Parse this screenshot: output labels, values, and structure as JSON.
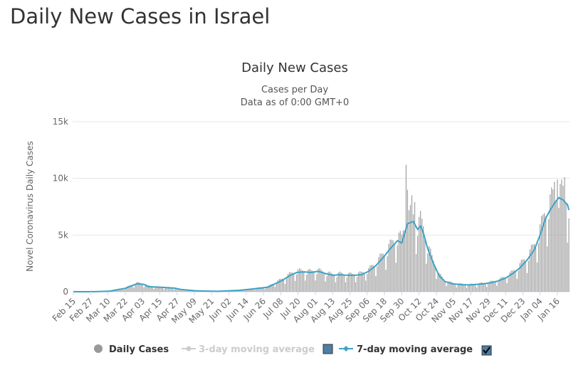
{
  "page": {
    "heading": "Daily New Cases in Israel"
  },
  "chart_data": {
    "type": "bar",
    "title": "Daily New Cases",
    "subtitle_lines": [
      "Cases per Day",
      "Data as of 0:00 GMT+0"
    ],
    "ylabel": "Novel Coronavirus Daily Cases",
    "ylim": [
      0,
      15000
    ],
    "yticks": [
      0,
      5000,
      10000,
      15000
    ],
    "ytick_labels": [
      "0",
      "5k",
      "10k",
      "15k"
    ],
    "x_tick_labels": [
      "Feb 15",
      "Feb 27",
      "Mar 10",
      "Mar 22",
      "Apr 03",
      "Apr 15",
      "Apr 27",
      "May 09",
      "May 21",
      "Jun 02",
      "Jun 14",
      "Jun 26",
      "Jul 08",
      "Jul 20",
      "Aug 01",
      "Aug 13",
      "Aug 25",
      "Sep 06",
      "Sep 18",
      "Sep 30",
      "Oct 12",
      "Oct 24",
      "Nov 05",
      "Nov 17",
      "Nov 29",
      "Dec 11",
      "Dec 23",
      "Jan 04",
      "Jan 16"
    ],
    "x_range": [
      "Feb 15",
      "Jan 21"
    ],
    "grid": true,
    "colors": {
      "bars": "#a0a0a0",
      "ma7": "#3ba3c6",
      "ma3": "#cccccc",
      "grid": "#e6e6e6"
    },
    "series_keyframes": {
      "note": "daily values anchored at dates; index = day offset from Feb 15",
      "ma7": [
        [
          0,
          0
        ],
        [
          14,
          5
        ],
        [
          25,
          50
        ],
        [
          36,
          300
        ],
        [
          44,
          700
        ],
        [
          49,
          650
        ],
        [
          52,
          450
        ],
        [
          60,
          400
        ],
        [
          70,
          320
        ],
        [
          75,
          200
        ],
        [
          85,
          80
        ],
        [
          100,
          40
        ],
        [
          115,
          120
        ],
        [
          125,
          250
        ],
        [
          135,
          400
        ],
        [
          140,
          700
        ],
        [
          145,
          1000
        ],
        [
          150,
          1400
        ],
        [
          155,
          1700
        ],
        [
          160,
          1750
        ],
        [
          165,
          1700
        ],
        [
          170,
          1800
        ],
        [
          175,
          1600
        ],
        [
          180,
          1450
        ],
        [
          185,
          1500
        ],
        [
          190,
          1450
        ],
        [
          195,
          1450
        ],
        [
          200,
          1500
        ],
        [
          205,
          1800
        ],
        [
          210,
          2300
        ],
        [
          215,
          3000
        ],
        [
          220,
          3800
        ],
        [
          225,
          4500
        ],
        [
          228,
          4300
        ],
        [
          232,
          6000
        ],
        [
          236,
          6200
        ],
        [
          239,
          5500
        ],
        [
          241,
          5800
        ],
        [
          243,
          5200
        ],
        [
          246,
          3800
        ],
        [
          250,
          2500
        ],
        [
          254,
          1400
        ],
        [
          258,
          900
        ],
        [
          263,
          700
        ],
        [
          270,
          620
        ],
        [
          275,
          600
        ],
        [
          280,
          650
        ],
        [
          285,
          700
        ],
        [
          290,
          800
        ],
        [
          295,
          950
        ],
        [
          300,
          1200
        ],
        [
          305,
          1600
        ],
        [
          310,
          2100
        ],
        [
          315,
          2800
        ],
        [
          320,
          3700
        ],
        [
          324,
          5000
        ],
        [
          328,
          6500
        ],
        [
          331,
          7200
        ],
        [
          334,
          7800
        ],
        [
          337,
          8300
        ],
        [
          340,
          8100
        ],
        [
          342,
          7800
        ],
        [
          343,
          7700
        ],
        [
          344,
          7200
        ]
      ],
      "bars": [
        [
          0,
          0
        ],
        [
          14,
          5
        ],
        [
          25,
          60
        ],
        [
          36,
          350
        ],
        [
          44,
          760
        ],
        [
          49,
          700
        ],
        [
          52,
          500
        ],
        [
          60,
          400
        ],
        [
          70,
          350
        ],
        [
          75,
          220
        ],
        [
          85,
          80
        ],
        [
          100,
          40
        ],
        [
          115,
          140
        ],
        [
          125,
          280
        ],
        [
          135,
          450
        ],
        [
          140,
          800
        ],
        [
          145,
          1100
        ],
        [
          150,
          1500
        ],
        [
          155,
          1800
        ],
        [
          160,
          1800
        ],
        [
          165,
          1750
        ],
        [
          170,
          1850
        ],
        [
          175,
          1650
        ],
        [
          180,
          1500
        ],
        [
          185,
          1550
        ],
        [
          190,
          1500
        ],
        [
          195,
          1500
        ],
        [
          200,
          1600
        ],
        [
          205,
          1900
        ],
        [
          210,
          2500
        ],
        [
          215,
          3200
        ],
        [
          220,
          4000
        ],
        [
          225,
          4800
        ],
        [
          228,
          4600
        ],
        [
          232,
          6800
        ],
        [
          236,
          6500
        ],
        [
          239,
          5800
        ],
        [
          241,
          6200
        ],
        [
          243,
          5500
        ],
        [
          246,
          4000
        ],
        [
          250,
          2600
        ],
        [
          254,
          1500
        ],
        [
          258,
          950
        ],
        [
          263,
          750
        ],
        [
          270,
          650
        ],
        [
          275,
          620
        ],
        [
          280,
          680
        ],
        [
          285,
          750
        ],
        [
          290,
          850
        ],
        [
          295,
          1000
        ],
        [
          300,
          1300
        ],
        [
          305,
          1700
        ],
        [
          310,
          2300
        ],
        [
          315,
          3000
        ],
        [
          320,
          4000
        ],
        [
          324,
          5400
        ],
        [
          328,
          7000
        ],
        [
          331,
          7800
        ],
        [
          334,
          8400
        ],
        [
          337,
          8700
        ],
        [
          340,
          8500
        ],
        [
          342,
          8200
        ],
        [
          343,
          7900
        ],
        [
          344,
          7600
        ]
      ],
      "spikes": [
        [
          231,
          11200
        ],
        [
          232,
          9000
        ],
        [
          233,
          7200
        ],
        [
          235,
          8500
        ],
        [
          237,
          7900
        ],
        [
          334,
          9700
        ],
        [
          336,
          9900
        ],
        [
          339,
          9900
        ],
        [
          341,
          10100
        ]
      ]
    }
  },
  "legend": {
    "items": [
      {
        "label": "Daily Cases"
      },
      {
        "label": "3-day moving average"
      },
      {
        "label": "7-day moving average"
      }
    ]
  }
}
